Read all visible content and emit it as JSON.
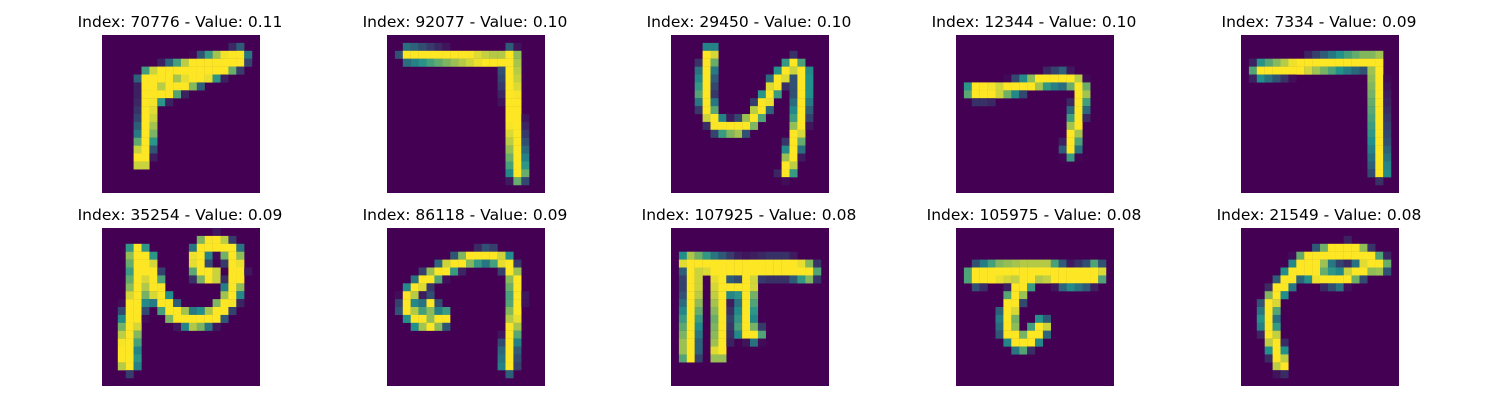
{
  "figure": {
    "background_color": "#440154",
    "colormap": {
      "low": "#440154",
      "mid": "#21918c",
      "high": "#fde725"
    }
  },
  "panels": [
    {
      "title": "Index: 70776 - Value: 0.11",
      "strokes": [
        {
          "pts": [
            [
              5.8,
              5.6
            ],
            [
              7.2,
              5.1
            ],
            [
              9.5,
              4.6
            ],
            [
              12.0,
              4.0
            ],
            [
              14.5,
              3.4
            ],
            [
              16.3,
              3.1
            ],
            [
              17.3,
              2.8
            ]
          ],
          "w": 2.1
        },
        {
          "pts": [
            [
              5.9,
              5.4
            ],
            [
              5.9,
              8.0
            ],
            [
              5.8,
              10.5
            ],
            [
              5.6,
              12.8
            ],
            [
              5.2,
              14.6
            ],
            [
              5.0,
              16.0
            ]
          ],
          "w": 1.9
        },
        {
          "pts": [
            [
              5.9,
              8.1
            ],
            [
              7.8,
              7.4
            ],
            [
              10.2,
              6.2
            ],
            [
              12.8,
              5.2
            ],
            [
              15.0,
              4.3
            ],
            [
              17.2,
              3.3
            ]
          ],
          "w": 1.7
        },
        {
          "pts": [
            [
              6.0,
              6.5
            ],
            [
              7.2,
              6.2
            ],
            [
              7.4,
              7.3
            ],
            [
              6.4,
              7.9
            ]
          ],
          "w": 0.9
        }
      ]
    },
    {
      "title": "Index: 92077 - Value: 0.10",
      "strokes": [
        {
          "pts": [
            [
              2.6,
              2.5
            ],
            [
              6.0,
              2.7
            ],
            [
              9.5,
              2.9
            ],
            [
              13.0,
              3.1
            ],
            [
              16.0,
              3.1
            ]
          ],
          "w": 1.6
        },
        {
          "pts": [
            [
              15.7,
              2.7
            ],
            [
              15.8,
              6.0
            ],
            [
              16.0,
              9.5
            ],
            [
              16.2,
              13.0
            ],
            [
              16.5,
              16.8
            ],
            [
              16.6,
              17.6
            ]
          ],
          "w": 1.9
        }
      ]
    },
    {
      "title": "Index: 29450 - Value: 0.10",
      "strokes": [
        {
          "pts": [
            [
              5.0,
              2.3
            ],
            [
              4.5,
              4.5
            ],
            [
              4.3,
              7.5
            ],
            [
              4.8,
              10.0
            ],
            [
              6.2,
              11.6
            ],
            [
              8.3,
              11.9
            ],
            [
              10.3,
              10.8
            ],
            [
              12.0,
              8.4
            ],
            [
              13.5,
              5.8
            ],
            [
              15.5,
              3.7
            ],
            [
              16.6,
              4.7
            ],
            [
              16.6,
              7.6
            ],
            [
              16.3,
              11.0
            ],
            [
              15.6,
              14.0
            ],
            [
              14.7,
              17.2
            ]
          ],
          "w": 1.6
        }
      ]
    },
    {
      "title": "Index: 12344 - Value: 0.10",
      "strokes": [
        {
          "pts": [
            [
              2.6,
              7.0
            ],
            [
              5.5,
              7.0
            ],
            [
              8.5,
              6.4
            ],
            [
              11.3,
              5.7
            ],
            [
              13.5,
              5.5
            ],
            [
              15.3,
              6.0
            ],
            [
              16.0,
              7.0
            ],
            [
              15.5,
              9.5
            ],
            [
              15.0,
              12.0
            ],
            [
              14.5,
              14.7
            ]
          ],
          "w": 1.5
        },
        {
          "pts": [
            [
              2.4,
              7.1
            ],
            [
              4.2,
              7.1
            ]
          ],
          "w": 2.0
        }
      ]
    },
    {
      "title": "Index: 7334 - Value: 0.09",
      "strokes": [
        {
          "pts": [
            [
              2.4,
              4.5
            ],
            [
              5.5,
              4.2
            ],
            [
              9.0,
              3.8
            ],
            [
              12.5,
              3.5
            ],
            [
              15.5,
              3.3
            ],
            [
              17.0,
              3.3
            ]
          ],
          "w": 1.8
        },
        {
          "pts": [
            [
              17.1,
              3.0
            ],
            [
              17.2,
              6.5
            ],
            [
              17.3,
              10.0
            ],
            [
              17.4,
              13.5
            ],
            [
              17.6,
              17.3
            ]
          ],
          "w": 1.6
        }
      ]
    },
    {
      "title": "Index: 35254 - Value: 0.09",
      "strokes": [
        {
          "pts": [
            [
              4.5,
              3.2
            ],
            [
              4.7,
              5.5
            ],
            [
              4.5,
              8.0
            ],
            [
              4.0,
              10.5
            ],
            [
              3.5,
              13.0
            ],
            [
              3.2,
              15.5
            ],
            [
              3.3,
              17.0
            ]
          ],
          "w": 2.3
        },
        {
          "pts": [
            [
              4.4,
              3.3
            ],
            [
              5.6,
              4.0
            ],
            [
              6.4,
              6.3
            ],
            [
              7.3,
              8.7
            ],
            [
              9.0,
              10.8
            ],
            [
              11.8,
              11.8
            ],
            [
              14.2,
              11.1
            ],
            [
              16.3,
              8.8
            ],
            [
              17.1,
              5.8
            ],
            [
              16.6,
              3.2
            ],
            [
              14.8,
              1.9
            ],
            [
              13.0,
              2.2
            ],
            [
              12.0,
              3.9
            ],
            [
              12.5,
              5.6
            ],
            [
              14.0,
              6.0
            ]
          ],
          "w": 1.9
        }
      ]
    },
    {
      "title": "Index: 86118 - Value: 0.09",
      "strokes": [
        {
          "pts": [
            [
              7.2,
              11.5
            ],
            [
              5.6,
              12.2
            ],
            [
              3.8,
              11.7
            ],
            [
              2.5,
              10.2
            ],
            [
              2.8,
              8.4
            ],
            [
              4.8,
              6.6
            ],
            [
              7.6,
              5.0
            ],
            [
              10.5,
              3.8
            ],
            [
              13.0,
              3.5
            ],
            [
              15.0,
              4.2
            ],
            [
              16.1,
              6.0
            ],
            [
              16.3,
              9.0
            ],
            [
              16.0,
              12.0
            ],
            [
              15.5,
              15.0
            ],
            [
              15.4,
              17.5
            ]
          ],
          "w": 1.5
        },
        {
          "pts": [
            [
              7.5,
              11.0
            ],
            [
              5.6,
              11.2
            ],
            [
              4.8,
              10.1
            ],
            [
              5.8,
              9.2
            ]
          ],
          "w": 0.9
        }
      ]
    },
    {
      "title": "Index: 107925 - Value: 0.08",
      "strokes": [
        {
          "pts": [
            [
              2.3,
              4.4
            ],
            [
              5.5,
              4.8
            ],
            [
              9.0,
              5.1
            ],
            [
              12.5,
              5.0
            ],
            [
              15.0,
              5.0
            ],
            [
              17.4,
              5.5
            ]
          ],
          "w": 2.2
        },
        {
          "pts": [
            [
              2.8,
              4.4
            ],
            [
              2.8,
              8.0
            ],
            [
              2.5,
              11.5
            ],
            [
              2.3,
              14.5
            ],
            [
              2.3,
              16.0
            ]
          ],
          "w": 1.9
        },
        {
          "pts": [
            [
              6.0,
              5.0
            ],
            [
              6.1,
              8.0
            ],
            [
              6.3,
              11.5
            ],
            [
              6.2,
              14.5
            ],
            [
              6.0,
              16.0
            ]
          ],
          "w": 1.7
        },
        {
          "pts": [
            [
              10.0,
              5.1
            ],
            [
              9.7,
              8.0
            ],
            [
              9.5,
              10.8
            ],
            [
              9.4,
              13.0
            ],
            [
              10.6,
              13.4
            ]
          ],
          "w": 1.8
        },
        {
          "pts": [
            [
              6.2,
              7.5
            ],
            [
              10.0,
              7.7
            ]
          ],
          "w": 1.6
        }
      ]
    },
    {
      "title": "Index: 105975 - Value: 0.08",
      "strokes": [
        {
          "pts": [
            [
              2.6,
              6.0
            ],
            [
              5.5,
              5.6
            ],
            [
              8.5,
              5.5
            ],
            [
              11.5,
              5.5
            ],
            [
              14.2,
              6.2
            ],
            [
              16.8,
              6.0
            ],
            [
              17.6,
              5.7
            ]
          ],
          "w": 2.4
        },
        {
          "pts": [
            [
              9.0,
              6.5
            ],
            [
              7.5,
              8.5
            ],
            [
              6.6,
              11.0
            ],
            [
              6.7,
              13.2
            ],
            [
              8.2,
              14.6
            ],
            [
              9.5,
              14.0
            ],
            [
              10.8,
              12.5
            ]
          ],
          "w": 1.9
        }
      ]
    },
    {
      "title": "Index: 21549 - Value: 0.08",
      "strokes": [
        {
          "pts": [
            [
              7.7,
              4.5
            ],
            [
              9.5,
              3.9
            ],
            [
              11.5,
              3.2
            ],
            [
              13.5,
              3.0
            ],
            [
              15.3,
              3.4
            ],
            [
              16.5,
              4.3
            ],
            [
              17.5,
              4.6
            ]
          ],
          "w": 2.1
        },
        {
          "pts": [
            [
              7.8,
              4.5
            ],
            [
              6.5,
              6.0
            ],
            [
              4.8,
              7.8
            ],
            [
              3.6,
              9.8
            ],
            [
              3.4,
              12.0
            ],
            [
              4.0,
              14.0
            ],
            [
              4.6,
              15.8
            ],
            [
              5.1,
              17.3
            ]
          ],
          "w": 1.7
        },
        {
          "pts": [
            [
              7.8,
              5.2
            ],
            [
              10.0,
              6.2
            ],
            [
              12.5,
              6.5
            ],
            [
              15.0,
              5.5
            ],
            [
              16.8,
              4.6
            ]
          ],
          "w": 1.6
        },
        {
          "pts": [
            [
              5.6,
              6.2
            ],
            [
              4.3,
              9.0
            ],
            [
              3.6,
              11.5
            ]
          ],
          "w": 1.2
        }
      ]
    }
  ]
}
